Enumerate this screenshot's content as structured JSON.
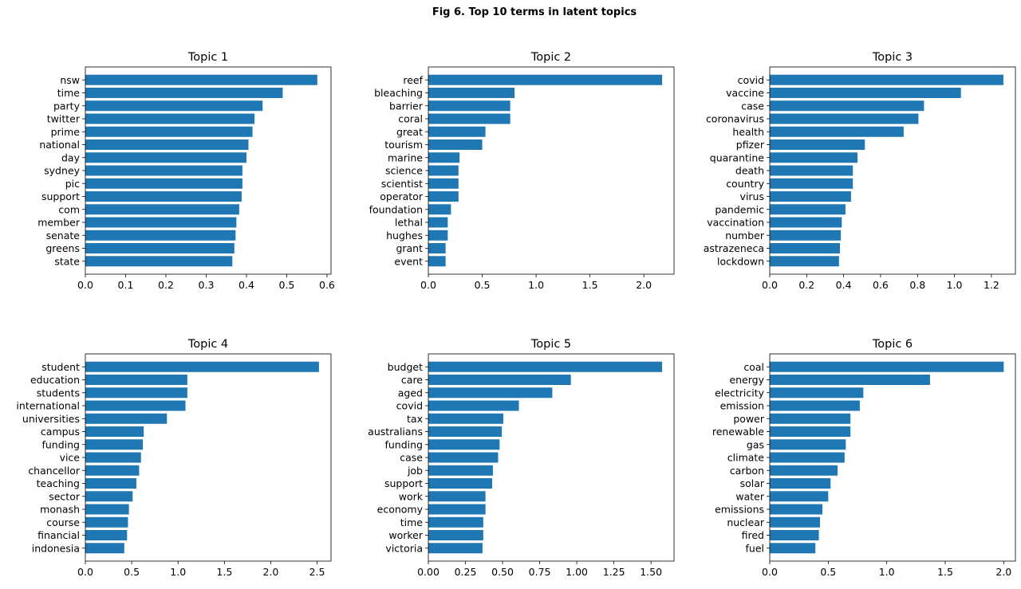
{
  "figure_title": "Fig 6. Top 10 terms in latent topics",
  "colors": {
    "bar": "#1f77b4",
    "axis": "#000000"
  },
  "chart_data": [
    {
      "type": "bar",
      "orientation": "horizontal",
      "title": "Topic 1",
      "categories": [
        "nsw",
        "time",
        "party",
        "twitter",
        "prime",
        "national",
        "day",
        "sydney",
        "pic",
        "support",
        "com",
        "member",
        "senate",
        "greens",
        "state"
      ],
      "values": [
        0.576,
        0.49,
        0.44,
        0.42,
        0.415,
        0.405,
        0.4,
        0.39,
        0.39,
        0.388,
        0.382,
        0.375,
        0.373,
        0.37,
        0.365
      ],
      "xlim": [
        0,
        0.61
      ],
      "xticks": [
        "0.0",
        "0.1",
        "0.2",
        "0.3",
        "0.4",
        "0.5",
        "0.6"
      ],
      "xtick_values": [
        0,
        0.1,
        0.2,
        0.3,
        0.4,
        0.5,
        0.6
      ]
    },
    {
      "type": "bar",
      "orientation": "horizontal",
      "title": "Topic 2",
      "categories": [
        "reef",
        "bleaching",
        "barrier",
        "coral",
        "great",
        "tourism",
        "marine",
        "science",
        "scientist",
        "operator",
        "foundation",
        "lethal",
        "hughes",
        "grant",
        "event"
      ],
      "values": [
        2.17,
        0.8,
        0.76,
        0.76,
        0.53,
        0.5,
        0.29,
        0.28,
        0.28,
        0.28,
        0.21,
        0.18,
        0.18,
        0.16,
        0.16
      ],
      "xlim": [
        0,
        2.28
      ],
      "xticks": [
        "0.0",
        "0.5",
        "1.0",
        "1.5",
        "2.0"
      ],
      "xtick_values": [
        0,
        0.5,
        1.0,
        1.5,
        2.0
      ]
    },
    {
      "type": "bar",
      "orientation": "horizontal",
      "title": "Topic 3",
      "categories": [
        "covid",
        "vaccine",
        "case",
        "coronavirus",
        "health",
        "pfizer",
        "quarantine",
        "death",
        "country",
        "virus",
        "pandemic",
        "vaccination",
        "number",
        "astrazeneca",
        "lockdown"
      ],
      "values": [
        1.265,
        1.035,
        0.835,
        0.805,
        0.725,
        0.515,
        0.475,
        0.45,
        0.45,
        0.44,
        0.41,
        0.39,
        0.385,
        0.38,
        0.375
      ],
      "xlim": [
        0,
        1.33
      ],
      "xticks": [
        "0.0",
        "0.2",
        "0.4",
        "0.6",
        "0.8",
        "1.0",
        "1.2"
      ],
      "xtick_values": [
        0,
        0.2,
        0.4,
        0.6,
        0.8,
        1.0,
        1.2
      ]
    },
    {
      "type": "bar",
      "orientation": "horizontal",
      "title": "Topic 4",
      "categories": [
        "student",
        "education",
        "students",
        "international",
        "universities",
        "campus",
        "funding",
        "vice",
        "chancellor",
        "teaching",
        "sector",
        "monash",
        "course",
        "financial",
        "indonesia"
      ],
      "values": [
        2.52,
        1.1,
        1.1,
        1.08,
        0.88,
        0.63,
        0.62,
        0.6,
        0.58,
        0.55,
        0.51,
        0.47,
        0.46,
        0.45,
        0.42
      ],
      "xlim": [
        0,
        2.65
      ],
      "xticks": [
        "0.0",
        "0.5",
        "1.0",
        "1.5",
        "2.0",
        "2.5"
      ],
      "xtick_values": [
        0,
        0.5,
        1.0,
        1.5,
        2.0,
        2.5
      ]
    },
    {
      "type": "bar",
      "orientation": "horizontal",
      "title": "Topic 5",
      "categories": [
        "budget",
        "care",
        "aged",
        "covid",
        "tax",
        "australians",
        "funding",
        "case",
        "job",
        "support",
        "work",
        "economy",
        "time",
        "worker",
        "victoria"
      ],
      "values": [
        1.575,
        0.96,
        0.835,
        0.61,
        0.505,
        0.495,
        0.48,
        0.47,
        0.435,
        0.43,
        0.385,
        0.385,
        0.37,
        0.37,
        0.365
      ],
      "xlim": [
        0,
        1.655
      ],
      "xticks": [
        "0.00",
        "0.25",
        "0.50",
        "0.75",
        "1.00",
        "1.25",
        "1.50"
      ],
      "xtick_values": [
        0,
        0.25,
        0.5,
        0.75,
        1.0,
        1.25,
        1.5
      ]
    },
    {
      "type": "bar",
      "orientation": "horizontal",
      "title": "Topic 6",
      "categories": [
        "coal",
        "energy",
        "electricity",
        "emission",
        "power",
        "renewable",
        "gas",
        "climate",
        "carbon",
        "solar",
        "water",
        "emissions",
        "nuclear",
        "fired",
        "fuel"
      ],
      "values": [
        2.0,
        1.37,
        0.8,
        0.77,
        0.69,
        0.69,
        0.65,
        0.64,
        0.58,
        0.52,
        0.5,
        0.45,
        0.43,
        0.42,
        0.39
      ],
      "xlim": [
        0,
        2.1
      ],
      "xticks": [
        "0.0",
        "0.5",
        "1.0",
        "1.5",
        "2.0"
      ],
      "xtick_values": [
        0,
        0.5,
        1.0,
        1.5,
        2.0
      ]
    }
  ]
}
